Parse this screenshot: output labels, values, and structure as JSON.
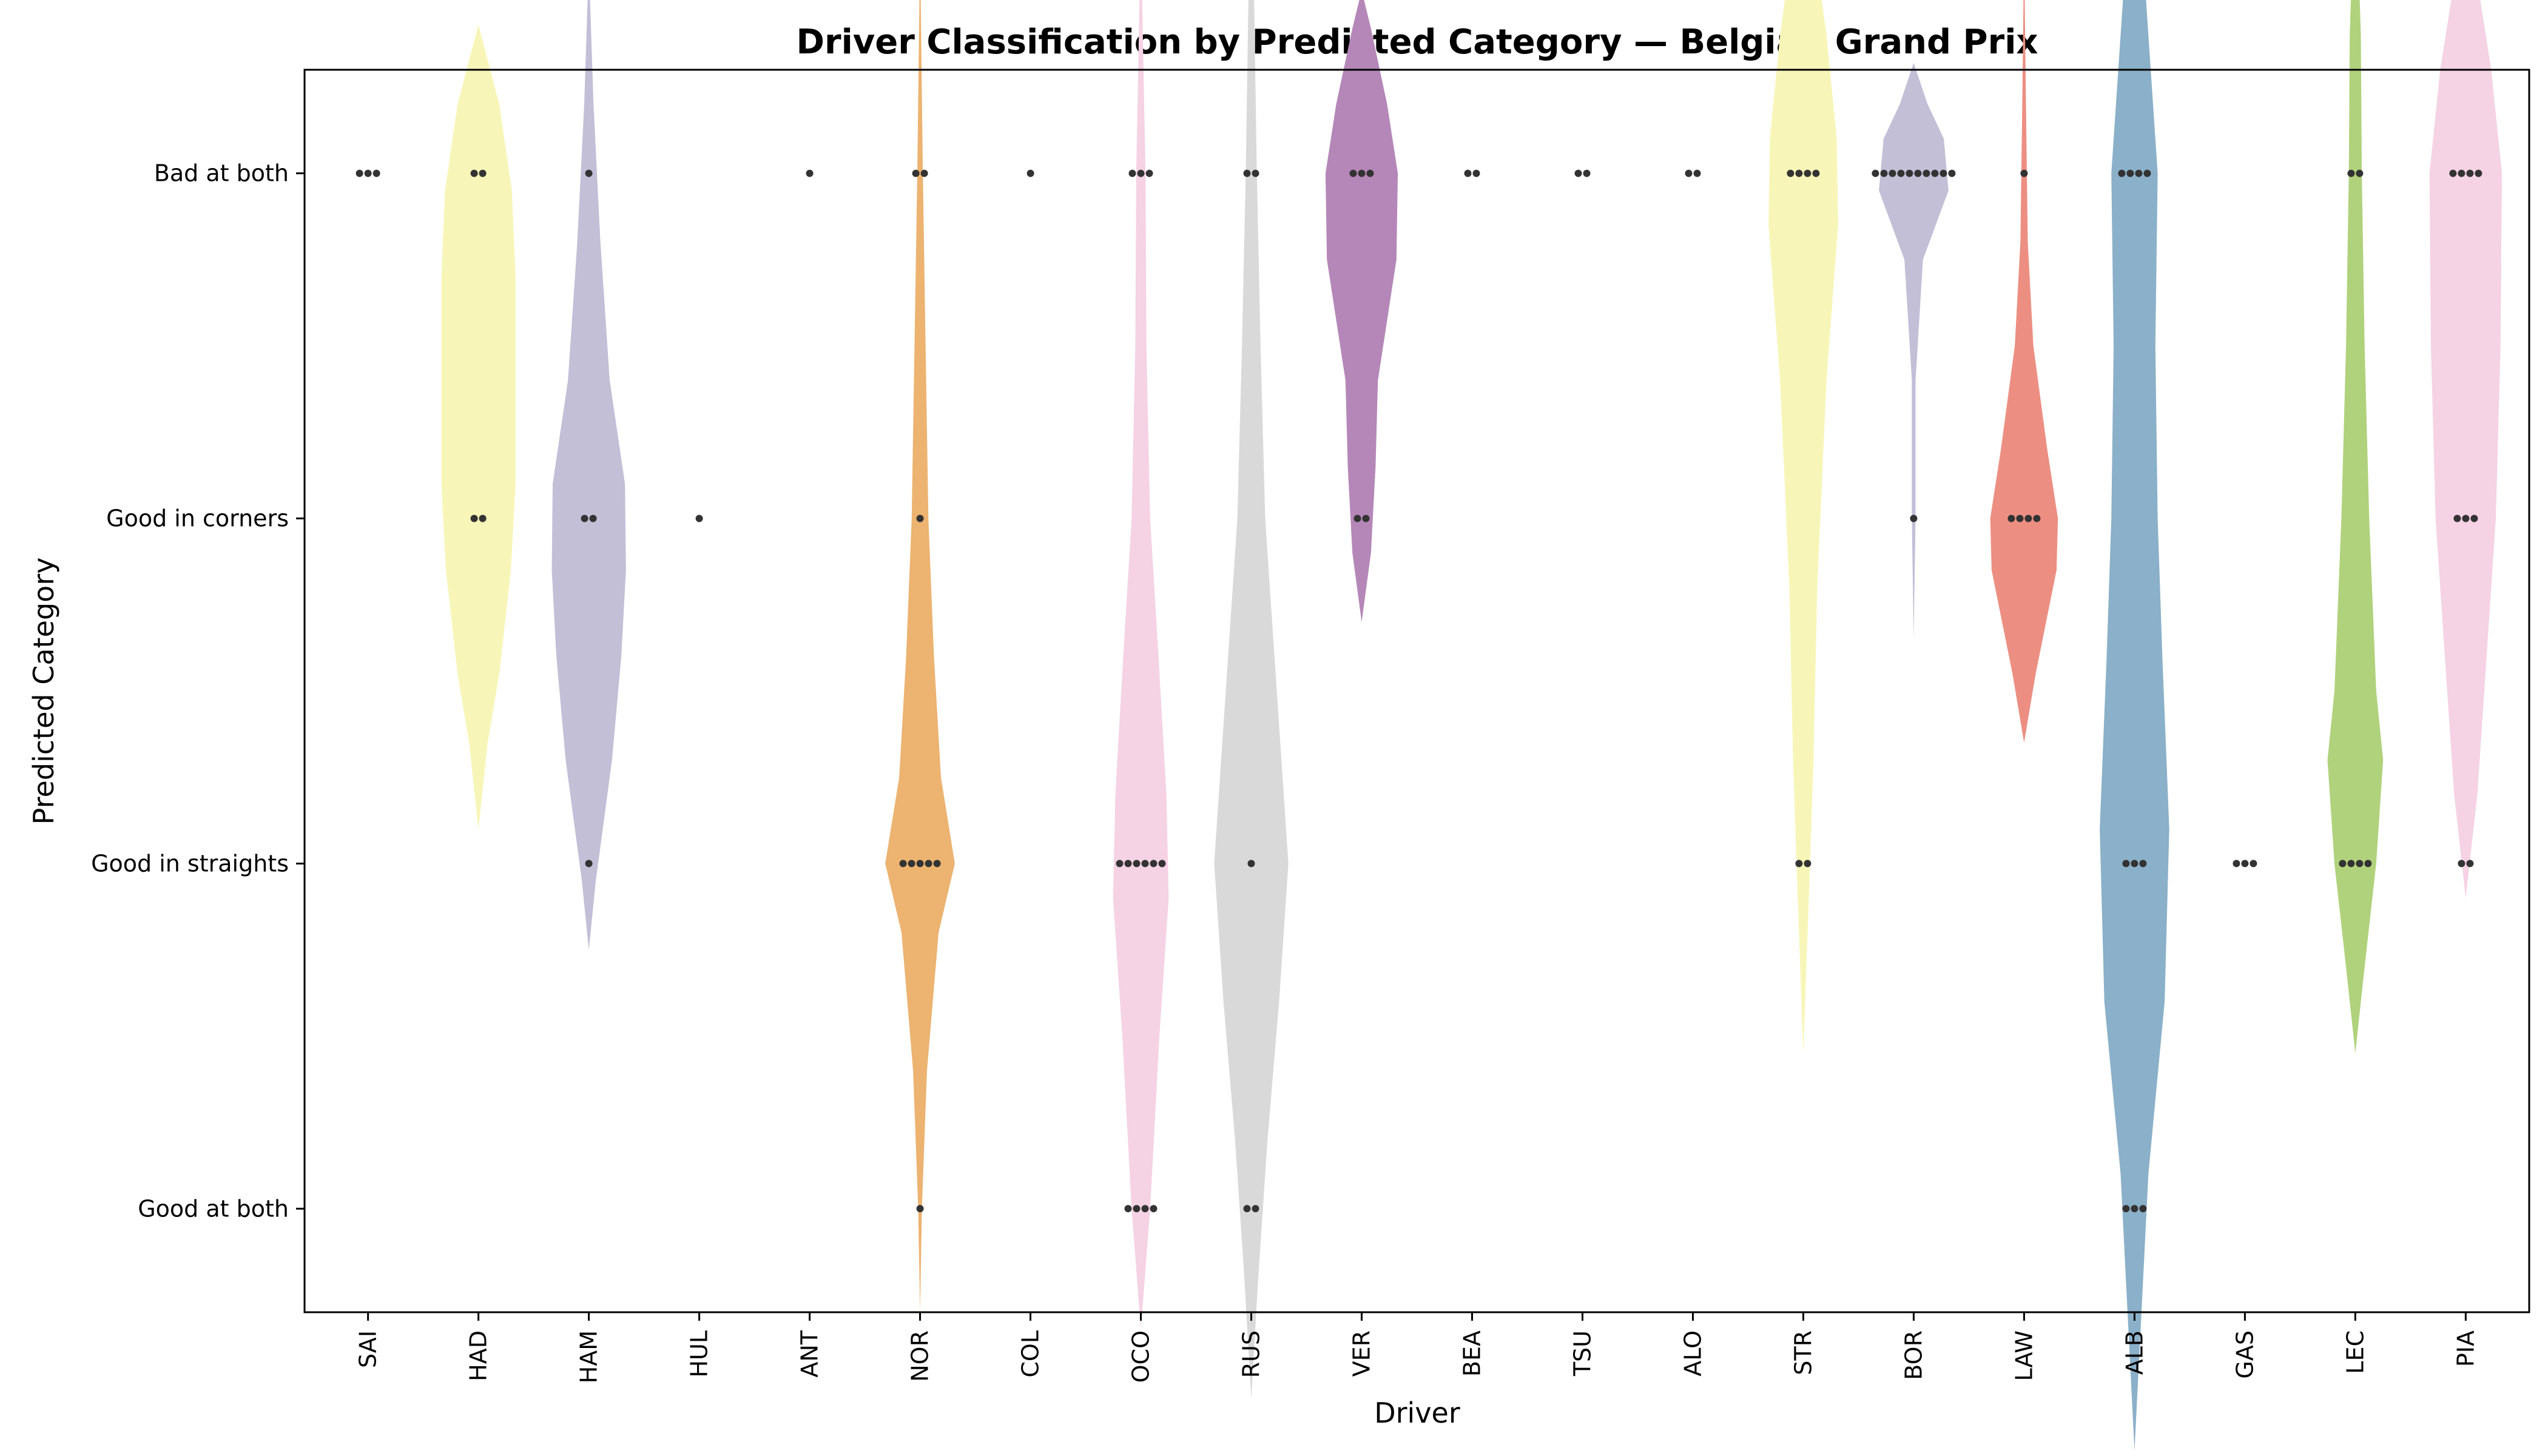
{
  "chart_data": {
    "type": "violin",
    "title": "Driver Classification by Predicted Category — Belgian Grand Prix",
    "xlabel": "Driver",
    "ylabel": "Predicted Category",
    "categories": [
      "Good at both",
      "Good in straights",
      "Good in corners",
      "Bad at both"
    ],
    "ylim": [
      -0.3,
      3.3
    ],
    "grid": false,
    "drivers": [
      {
        "name": "SAI",
        "color": "#8dd3c7",
        "counts": [
          0,
          0,
          0,
          3
        ],
        "violin": null
      },
      {
        "name": "HAD",
        "color": "#f7f6b8",
        "counts": [
          0,
          0,
          2,
          2
        ],
        "violin": [
          [
            1.1,
            0.0
          ],
          [
            1.35,
            0.2
          ],
          [
            1.55,
            0.45
          ],
          [
            1.85,
            0.7
          ],
          [
            2.1,
            0.8
          ],
          [
            2.4,
            0.8
          ],
          [
            2.7,
            0.8
          ],
          [
            2.95,
            0.72
          ],
          [
            3.2,
            0.45
          ],
          [
            3.43,
            0.0
          ]
        ]
      },
      {
        "name": "HAM",
        "color": "#c3bfd7",
        "counts": [
          0,
          1,
          2,
          1
        ],
        "violin": [
          [
            0.75,
            0.0
          ],
          [
            0.95,
            0.15
          ],
          [
            1.3,
            0.5
          ],
          [
            1.6,
            0.7
          ],
          [
            1.85,
            0.8
          ],
          [
            2.1,
            0.78
          ],
          [
            2.4,
            0.45
          ],
          [
            2.8,
            0.25
          ],
          [
            3.2,
            0.1
          ],
          [
            3.61,
            0.0
          ]
        ]
      },
      {
        "name": "HUL",
        "color": "#fb8072",
        "counts": [
          0,
          0,
          1,
          0
        ],
        "violin": null
      },
      {
        "name": "ANT",
        "color": "#80b1d3",
        "counts": [
          0,
          0,
          0,
          1
        ],
        "violin": null
      },
      {
        "name": "NOR",
        "color": "#ecb371",
        "counts": [
          1,
          5,
          1,
          2
        ],
        "violin": [
          [
            -0.3,
            0.0
          ],
          [
            0.0,
            0.04
          ],
          [
            0.4,
            0.15
          ],
          [
            0.8,
            0.4
          ],
          [
            1.0,
            0.75
          ],
          [
            1.25,
            0.45
          ],
          [
            1.6,
            0.3
          ],
          [
            2.0,
            0.18
          ],
          [
            2.5,
            0.12
          ],
          [
            3.0,
            0.06
          ],
          [
            3.65,
            0.0
          ]
        ]
      },
      {
        "name": "COL",
        "color": "#fdb462",
        "counts": [
          0,
          0,
          0,
          1
        ],
        "violin": null
      },
      {
        "name": "OCO",
        "color": "#f5d2e4",
        "counts": [
          4,
          6,
          0,
          3
        ],
        "violin": [
          [
            -0.35,
            0.0
          ],
          [
            0.0,
            0.2
          ],
          [
            0.5,
            0.4
          ],
          [
            0.9,
            0.6
          ],
          [
            1.2,
            0.55
          ],
          [
            1.6,
            0.38
          ],
          [
            2.0,
            0.2
          ],
          [
            2.5,
            0.12
          ],
          [
            3.0,
            0.1
          ],
          [
            3.7,
            0.0
          ]
        ]
      },
      {
        "name": "RUS",
        "color": "#d9d9d9",
        "counts": [
          2,
          1,
          0,
          2
        ],
        "violin": [
          [
            -0.55,
            0.0
          ],
          [
            -0.2,
            0.15
          ],
          [
            0.2,
            0.35
          ],
          [
            0.6,
            0.6
          ],
          [
            1.0,
            0.8
          ],
          [
            1.5,
            0.55
          ],
          [
            2.0,
            0.3
          ],
          [
            2.5,
            0.2
          ],
          [
            3.0,
            0.12
          ],
          [
            3.6,
            0.05
          ],
          [
            4.0,
            0.0
          ]
        ]
      },
      {
        "name": "VER",
        "color": "#b587b8",
        "counts": [
          0,
          0,
          2,
          3
        ],
        "violin": [
          [
            1.7,
            0.0
          ],
          [
            1.9,
            0.2
          ],
          [
            2.15,
            0.3
          ],
          [
            2.4,
            0.35
          ],
          [
            2.75,
            0.75
          ],
          [
            3.0,
            0.78
          ],
          [
            3.2,
            0.55
          ],
          [
            3.42,
            0.2
          ],
          [
            3.53,
            0.0
          ]
        ]
      },
      {
        "name": "BEA",
        "color": "#bc80bd",
        "counts": [
          0,
          0,
          0,
          2
        ],
        "violin": null
      },
      {
        "name": "TSU",
        "color": "#ccebc5",
        "counts": [
          0,
          0,
          0,
          2
        ],
        "violin": null
      },
      {
        "name": "ALO",
        "color": "#ffed6f",
        "counts": [
          0,
          0,
          0,
          2
        ],
        "violin": null
      },
      {
        "name": "STR",
        "color": "#f7f6b8",
        "counts": [
          0,
          2,
          0,
          4
        ],
        "violin": [
          [
            0.45,
            0.0
          ],
          [
            0.9,
            0.12
          ],
          [
            1.3,
            0.22
          ],
          [
            1.8,
            0.3
          ],
          [
            2.4,
            0.5
          ],
          [
            2.85,
            0.75
          ],
          [
            3.1,
            0.72
          ],
          [
            3.4,
            0.5
          ],
          [
            3.9,
            0.0
          ]
        ]
      },
      {
        "name": "BOR",
        "color": "#c3bfd7",
        "counts": [
          0,
          0,
          1,
          10
        ],
        "violin": [
          [
            1.65,
            0.0
          ],
          [
            2.0,
            0.04
          ],
          [
            2.4,
            0.04
          ],
          [
            2.75,
            0.2
          ],
          [
            2.95,
            0.75
          ],
          [
            3.1,
            0.65
          ],
          [
            3.2,
            0.3
          ],
          [
            3.32,
            0.0
          ]
        ]
      },
      {
        "name": "LAW",
        "color": "#ec8f82",
        "counts": [
          0,
          0,
          4,
          1
        ],
        "violin": [
          [
            1.35,
            0.0
          ],
          [
            1.55,
            0.25
          ],
          [
            1.85,
            0.7
          ],
          [
            2.0,
            0.73
          ],
          [
            2.2,
            0.5
          ],
          [
            2.5,
            0.2
          ],
          [
            2.8,
            0.08
          ],
          [
            3.2,
            0.04
          ],
          [
            3.65,
            0.0
          ]
        ]
      },
      {
        "name": "ALB",
        "color": "#8bb0c9",
        "counts": [
          3,
          3,
          0,
          4
        ],
        "violin": [
          [
            -0.7,
            0.0
          ],
          [
            -0.3,
            0.15
          ],
          [
            0.1,
            0.3
          ],
          [
            0.6,
            0.65
          ],
          [
            1.1,
            0.75
          ],
          [
            1.6,
            0.6
          ],
          [
            2.0,
            0.5
          ],
          [
            2.5,
            0.45
          ],
          [
            3.0,
            0.5
          ],
          [
            3.5,
            0.25
          ],
          [
            3.7,
            0.15
          ],
          [
            3.71,
            0.0
          ]
        ]
      },
      {
        "name": "GAS",
        "color": "#b3de69",
        "counts": [
          0,
          3,
          0,
          0
        ],
        "violin": null
      },
      {
        "name": "LEC",
        "color": "#b0d27c",
        "counts": [
          0,
          4,
          0,
          2
        ],
        "violin": [
          [
            0.45,
            0.0
          ],
          [
            0.7,
            0.2
          ],
          [
            1.0,
            0.45
          ],
          [
            1.3,
            0.6
          ],
          [
            1.5,
            0.45
          ],
          [
            2.0,
            0.3
          ],
          [
            2.5,
            0.2
          ],
          [
            3.0,
            0.14
          ],
          [
            3.4,
            0.12
          ],
          [
            3.9,
            0.0
          ]
        ]
      },
      {
        "name": "PIA",
        "color": "#f5d2e4",
        "counts": [
          0,
          2,
          3,
          4
        ],
        "violin": [
          [
            0.9,
            0.0
          ],
          [
            1.2,
            0.25
          ],
          [
            1.6,
            0.45
          ],
          [
            2.0,
            0.65
          ],
          [
            2.5,
            0.75
          ],
          [
            3.0,
            0.78
          ],
          [
            3.3,
            0.55
          ],
          [
            3.53,
            0.28
          ],
          [
            3.54,
            0.0
          ]
        ]
      }
    ]
  }
}
